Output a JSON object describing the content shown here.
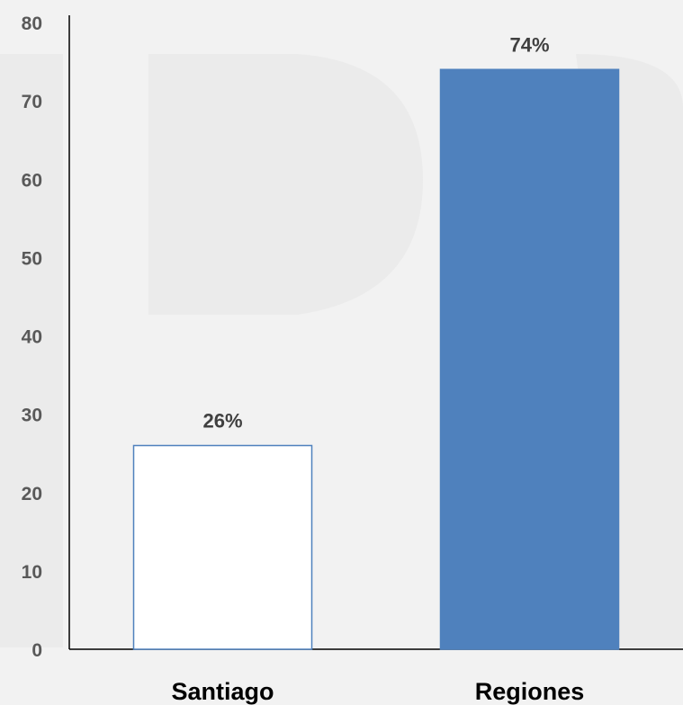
{
  "chart_data": {
    "type": "bar",
    "categories": [
      "Santiago",
      "Regiones"
    ],
    "values": [
      26,
      74
    ],
    "data_labels": [
      "26%",
      "74%"
    ],
    "ylim": [
      0,
      80
    ],
    "yticks": [
      0,
      10,
      20,
      30,
      40,
      50,
      60,
      70,
      80
    ],
    "grid": false,
    "legend": "none",
    "colors": {
      "Santiago": {
        "fill": "#ffffff",
        "stroke": "#4f81bd"
      },
      "Regiones": {
        "fill": "#4f81bd",
        "stroke": "#4f81bd"
      },
      "background": "#f2f2f2",
      "axis": "#000000"
    }
  }
}
